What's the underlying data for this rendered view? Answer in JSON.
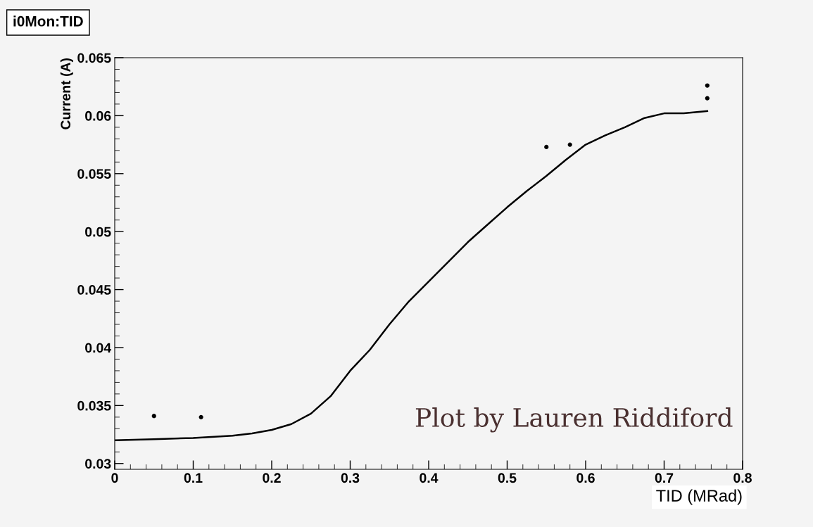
{
  "chart_data": {
    "type": "line",
    "title": "i0Mon:TID",
    "xlabel": "TID (MRad)",
    "ylabel": "Current (A)",
    "annotations": [
      "Plot by Lauren Riddiford"
    ],
    "xlim": [
      0,
      0.8
    ],
    "xticks": [
      0,
      0.1,
      0.2,
      0.3,
      0.4,
      0.5,
      0.6,
      0.7,
      0.8
    ],
    "ylim": [
      0.0295,
      0.065
    ],
    "yticks": [
      0.03,
      0.035,
      0.04,
      0.045,
      0.05,
      0.055,
      0.06,
      0.065
    ],
    "grid": false,
    "legend": false,
    "series": [
      {
        "color": "#000000",
        "marker": "none",
        "line_style": "solid",
        "x": [
          0,
          0.05,
          0.1,
          0.15,
          0.175,
          0.2,
          0.225,
          0.25,
          0.275,
          0.3,
          0.325,
          0.35,
          0.375,
          0.4,
          0.425,
          0.45,
          0.475,
          0.5,
          0.525,
          0.55,
          0.575,
          0.6,
          0.625,
          0.65,
          0.675,
          0.7,
          0.725,
          0.755
        ],
        "values": [
          0.032,
          0.0321,
          0.0322,
          0.0324,
          0.0326,
          0.0329,
          0.0334,
          0.0343,
          0.0358,
          0.038,
          0.0398,
          0.042,
          0.044,
          0.0457,
          0.0474,
          0.0491,
          0.0506,
          0.0521,
          0.0535,
          0.0548,
          0.0562,
          0.0575,
          0.0583,
          0.059,
          0.0598,
          0.0602,
          0.0602,
          0.0604
        ]
      },
      {
        "type": "scatter",
        "color": "#000000",
        "marker": "circle",
        "x": [
          0.05,
          0.11,
          0.55,
          0.58,
          0.755,
          0.755
        ],
        "values": [
          0.0341,
          0.034,
          0.0573,
          0.0575,
          0.0626,
          0.0615
        ]
      }
    ]
  }
}
